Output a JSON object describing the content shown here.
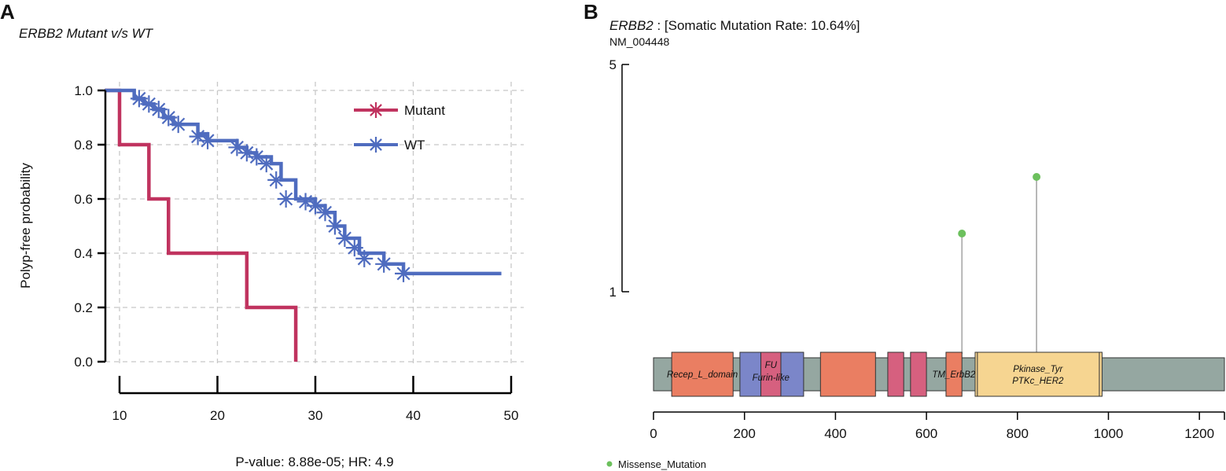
{
  "colors": {
    "mutant": "#c0335f",
    "wt": "#4f6cbf",
    "grid": "#c8c8c8",
    "axis": "#000000",
    "backbone": "#95a7a1",
    "lollipop": "#6cc05d",
    "stem": "#b0b0b0"
  },
  "chart_data": [
    {
      "type": "line",
      "panel_label": "A",
      "title": "ERBB2 Mutant v/s WT",
      "xlabel": "",
      "ylabel": "Polyp-free probability",
      "xlim": [
        8.5,
        50
      ],
      "ylim": [
        0,
        1
      ],
      "xticks": [
        10,
        20,
        30,
        40,
        50
      ],
      "yticks": [
        "0.0",
        "0.2",
        "0.4",
        "0.6",
        "0.8",
        "1.0"
      ],
      "grid": true,
      "legend": [
        "Mutant",
        "WT"
      ],
      "legend_position": "top-right",
      "footer": "P-value: 8.88e-05; HR: 4.9",
      "series": [
        {
          "name": "Mutant",
          "step_x": [
            8.5,
            10,
            10,
            13,
            13,
            15,
            15,
            23,
            23,
            28,
            28
          ],
          "step_y": [
            1.0,
            1.0,
            0.8,
            0.8,
            0.6,
            0.6,
            0.4,
            0.4,
            0.2,
            0.2,
            0.0
          ],
          "censor_x": [],
          "censor_y": []
        },
        {
          "name": "WT",
          "step_x": [
            8.5,
            11.5,
            11.5,
            12.5,
            12.5,
            13.5,
            13.5,
            14.5,
            14.5,
            15.5,
            15.5,
            18,
            18,
            19,
            19,
            22,
            22,
            23,
            23,
            24,
            24,
            25.5,
            25.5,
            26.5,
            26.5,
            28,
            28,
            30,
            30,
            31,
            31,
            32,
            32,
            33,
            33,
            34.5,
            34.5,
            37,
            37,
            39,
            39,
            49
          ],
          "step_y": [
            1.0,
            1.0,
            0.97,
            0.97,
            0.95,
            0.95,
            0.93,
            0.93,
            0.9,
            0.9,
            0.875,
            0.875,
            0.84,
            0.84,
            0.815,
            0.815,
            0.79,
            0.79,
            0.77,
            0.77,
            0.755,
            0.755,
            0.73,
            0.73,
            0.67,
            0.67,
            0.6,
            0.6,
            0.575,
            0.575,
            0.55,
            0.55,
            0.5,
            0.5,
            0.455,
            0.455,
            0.4,
            0.4,
            0.36,
            0.36,
            0.325,
            0.325
          ],
          "censor_x": [
            12,
            13,
            14,
            15,
            16,
            18,
            19,
            22,
            23,
            24,
            25,
            26,
            27,
            29,
            30,
            31,
            32,
            33,
            34,
            35,
            37,
            39
          ],
          "censor_y": [
            0.97,
            0.95,
            0.93,
            0.9,
            0.875,
            0.83,
            0.815,
            0.79,
            0.77,
            0.755,
            0.73,
            0.67,
            0.6,
            0.59,
            0.575,
            0.55,
            0.5,
            0.455,
            0.42,
            0.38,
            0.36,
            0.325
          ]
        }
      ]
    },
    {
      "type": "lollipop",
      "panel_label": "B",
      "gene": "ERBB2",
      "title_suffix": " : [Somatic Mutation Rate: 10.64%]",
      "transcript": "NM_004448",
      "xlim": [
        0,
        1255
      ],
      "xticks": [
        0,
        200,
        400,
        600,
        800,
        1000,
        1200
      ],
      "yticks": [
        "1",
        "5"
      ],
      "protein_length": 1255,
      "mutations": [
        {
          "position": 678,
          "count": 2
        },
        {
          "position": 842,
          "count": 3
        }
      ],
      "domains": [
        {
          "start": 40,
          "end": 175,
          "color": "#ea7e62",
          "label": ""
        },
        {
          "start": 190,
          "end": 236,
          "color": "#7b86c9",
          "label": ""
        },
        {
          "start": 236,
          "end": 280,
          "color": "#d6607f",
          "label": ""
        },
        {
          "start": 280,
          "end": 330,
          "color": "#7b86c9",
          "label": ""
        },
        {
          "start": 367,
          "end": 488,
          "color": "#ea7e62",
          "label": ""
        },
        {
          "start": 515,
          "end": 550,
          "color": "#d6607f",
          "label": ""
        },
        {
          "start": 565,
          "end": 600,
          "color": "#d6607f",
          "label": ""
        },
        {
          "start": 643,
          "end": 678,
          "color": "#ea7e62",
          "label": ""
        },
        {
          "start": 707,
          "end": 986,
          "color": "#f6d591",
          "label": ""
        },
        {
          "start": 712,
          "end": 980,
          "color": "#f6d591",
          "label": ""
        }
      ],
      "domain_labels": [
        {
          "text": "Recep_L_domain",
          "position": 90
        },
        {
          "text": "FU",
          "position": 258
        },
        {
          "text": "Furin-like",
          "position": 258
        },
        {
          "text": "TM_ErbB2",
          "position": 660
        },
        {
          "text": "Pkinase_Tyr",
          "position": 845
        },
        {
          "text": "PTKc_HER2",
          "position": 845
        }
      ],
      "legend": "Missense_Mutation"
    }
  ]
}
